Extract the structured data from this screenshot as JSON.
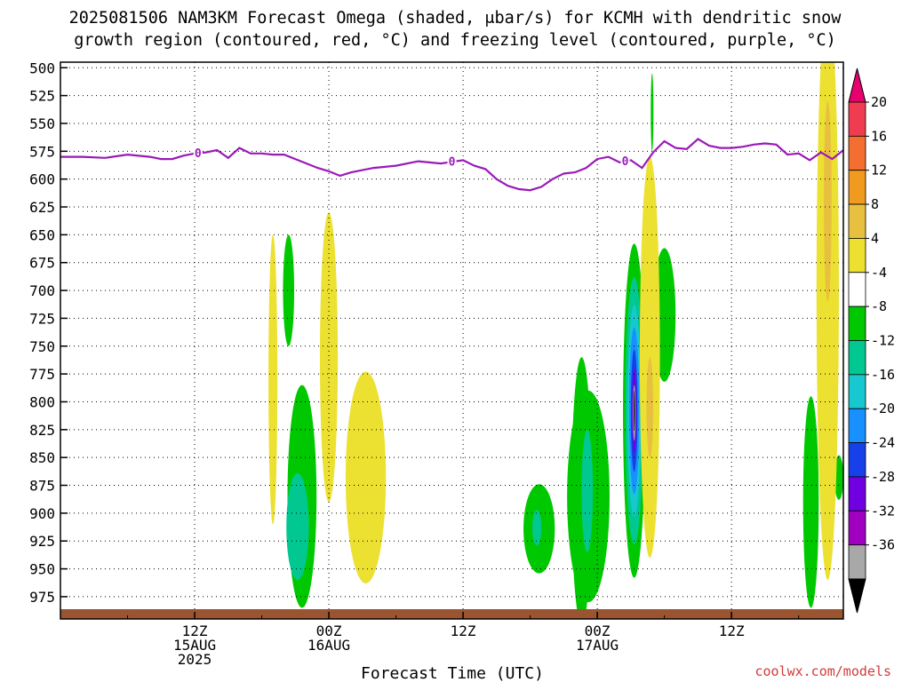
{
  "chart_data": {
    "type": "contour",
    "title_line1": "2025081506 NAM3KM Forecast Omega (shaded, μbar/s) for KCMH with dendritic snow",
    "title_line2": "growth region (contoured, red, °C) and freezing level (contoured, purple, °C)",
    "xlabel": "Forecast Time (UTC)",
    "credit": "coolwx.com/models",
    "x_hours_range": [
      -6,
      64
    ],
    "y_pressure_range": [
      495,
      995
    ],
    "y_ticks": [
      "500",
      "525",
      "550",
      "575",
      "600",
      "625",
      "650",
      "675",
      "700",
      "725",
      "750",
      "775",
      "800",
      "825",
      "850",
      "875",
      "900",
      "925",
      "950",
      "975"
    ],
    "x_ticks": [
      {
        "hour": 6,
        "label": "12Z",
        "line2": "15AUG",
        "line3": "2025"
      },
      {
        "hour": 18,
        "label": "00Z",
        "line2": "16AUG",
        "line3": ""
      },
      {
        "hour": 30,
        "label": "12Z",
        "line2": "",
        "line3": ""
      },
      {
        "hour": 42,
        "label": "00Z",
        "line2": "17AUG",
        "line3": ""
      },
      {
        "hour": 54,
        "label": "12Z",
        "line2": "",
        "line3": ""
      }
    ],
    "colorbar": {
      "labels": [
        "20",
        "16",
        "12",
        "8",
        "4",
        "-4",
        "-8",
        "-12",
        "-16",
        "-20",
        "-24",
        "-28",
        "-32",
        "-36"
      ],
      "colors": [
        "#e8006e",
        "#f03c50",
        "#f36e30",
        "#f09a20",
        "#e8c040",
        "#ece030",
        "#ffffff",
        "#00c800",
        "#00c890",
        "#18c8d0",
        "#1890ff",
        "#1840e8",
        "#7000e0",
        "#a000c0",
        "#a8a8a8",
        "#000000"
      ]
    },
    "freezing_level": {
      "label": "0",
      "label_hours": [
        6.3,
        29.0,
        44.5
      ],
      "hours": [
        -6,
        -4,
        -2,
        0,
        2,
        3,
        4,
        5,
        6,
        7,
        8,
        9,
        10,
        11,
        12,
        13,
        14,
        15,
        16,
        17,
        18,
        19,
        20,
        22,
        24,
        26,
        28,
        30,
        31,
        32,
        33,
        34,
        35,
        36,
        37,
        38,
        39,
        40,
        41,
        42,
        43,
        44,
        45,
        46,
        47,
        48,
        49,
        50,
        51,
        52,
        53,
        54,
        55,
        56,
        57,
        58,
        59,
        60,
        61,
        62,
        63,
        64
      ],
      "pressure": [
        580,
        580,
        581,
        578,
        580,
        582,
        582,
        579,
        577,
        576,
        574,
        581,
        572,
        577,
        577,
        578,
        578,
        582,
        586,
        590,
        593,
        597,
        594,
        590,
        588,
        584,
        586,
        583,
        588,
        591,
        600,
        606,
        609,
        610,
        607,
        600,
        595,
        594,
        590,
        582,
        580,
        585,
        583,
        590,
        576,
        566,
        572,
        573,
        564,
        570,
        572,
        572,
        571,
        569,
        568,
        569,
        578,
        577,
        583,
        576,
        582,
        574
      ]
    },
    "omega_regions": [
      {
        "level": "-4",
        "center": [
          15.6,
          885
        ],
        "radius": [
          1.3,
          100
        ]
      },
      {
        "level": "-8",
        "center": [
          15.2,
          912
        ],
        "radius": [
          1.0,
          48
        ]
      },
      {
        "level": "-4",
        "center": [
          14.4,
          700
        ],
        "radius": [
          0.5,
          50
        ]
      },
      {
        "level": "-4",
        "center": [
          41.2,
          885
        ],
        "radius": [
          1.9,
          95
        ]
      },
      {
        "level": "-4",
        "center": [
          40.6,
          880
        ],
        "radius": [
          0.9,
          120
        ]
      },
      {
        "level": "-8",
        "center": [
          41.1,
          880
        ],
        "radius": [
          0.5,
          55
        ]
      },
      {
        "level": "-4",
        "center": [
          36.8,
          914
        ],
        "radius": [
          1.4,
          40
        ]
      },
      {
        "level": "-8",
        "center": [
          36.6,
          913
        ],
        "radius": [
          0.4,
          16
        ]
      },
      {
        "level": "-4",
        "center": [
          45.3,
          808
        ],
        "radius": [
          1.0,
          150
        ]
      },
      {
        "level": "-8",
        "center": [
          45.3,
          808
        ],
        "radius": [
          0.8,
          120
        ]
      },
      {
        "level": "-12",
        "center": [
          45.3,
          808
        ],
        "radius": [
          0.6,
          95
        ]
      },
      {
        "level": "-16",
        "center": [
          45.3,
          808
        ],
        "radius": [
          0.45,
          75
        ]
      },
      {
        "level": "-20",
        "center": [
          45.3,
          808
        ],
        "radius": [
          0.3,
          55
        ]
      },
      {
        "level": "-24",
        "center": [
          45.3,
          808
        ],
        "radius": [
          0.2,
          38
        ]
      },
      {
        "level": "-32",
        "center": [
          45.3,
          810
        ],
        "radius": [
          0.12,
          25
        ]
      },
      {
        "level": "-36",
        "center": [
          45.3,
          808
        ],
        "radius": [
          0.05,
          18
        ]
      },
      {
        "level": "-4",
        "center": [
          48.0,
          722
        ],
        "radius": [
          1.0,
          60
        ]
      },
      {
        "level": "-4",
        "center": [
          61.1,
          890
        ],
        "radius": [
          0.7,
          95
        ]
      },
      {
        "level": "-4",
        "center": [
          63.6,
          868
        ],
        "radius": [
          0.4,
          20
        ]
      },
      {
        "level": "-4",
        "center": [
          46.9,
          540
        ],
        "radius": [
          0.12,
          35
        ]
      },
      {
        "level": "4",
        "center": [
          21.3,
          868
        ],
        "radius": [
          1.8,
          95
        ]
      },
      {
        "level": "4",
        "center": [
          18.0,
          760
        ],
        "radius": [
          0.8,
          130
        ]
      },
      {
        "level": "4",
        "center": [
          13.0,
          780
        ],
        "radius": [
          0.4,
          130
        ]
      },
      {
        "level": "4",
        "center": [
          46.7,
          760
        ],
        "radius": [
          0.9,
          180
        ]
      },
      {
        "level": "8",
        "center": [
          46.7,
          805
        ],
        "radius": [
          0.3,
          45
        ]
      },
      {
        "level": "4",
        "center": [
          62.6,
          700
        ],
        "radius": [
          1.0,
          260
        ]
      },
      {
        "level": "8",
        "center": [
          62.6,
          620
        ],
        "radius": [
          0.35,
          90
        ]
      }
    ]
  }
}
